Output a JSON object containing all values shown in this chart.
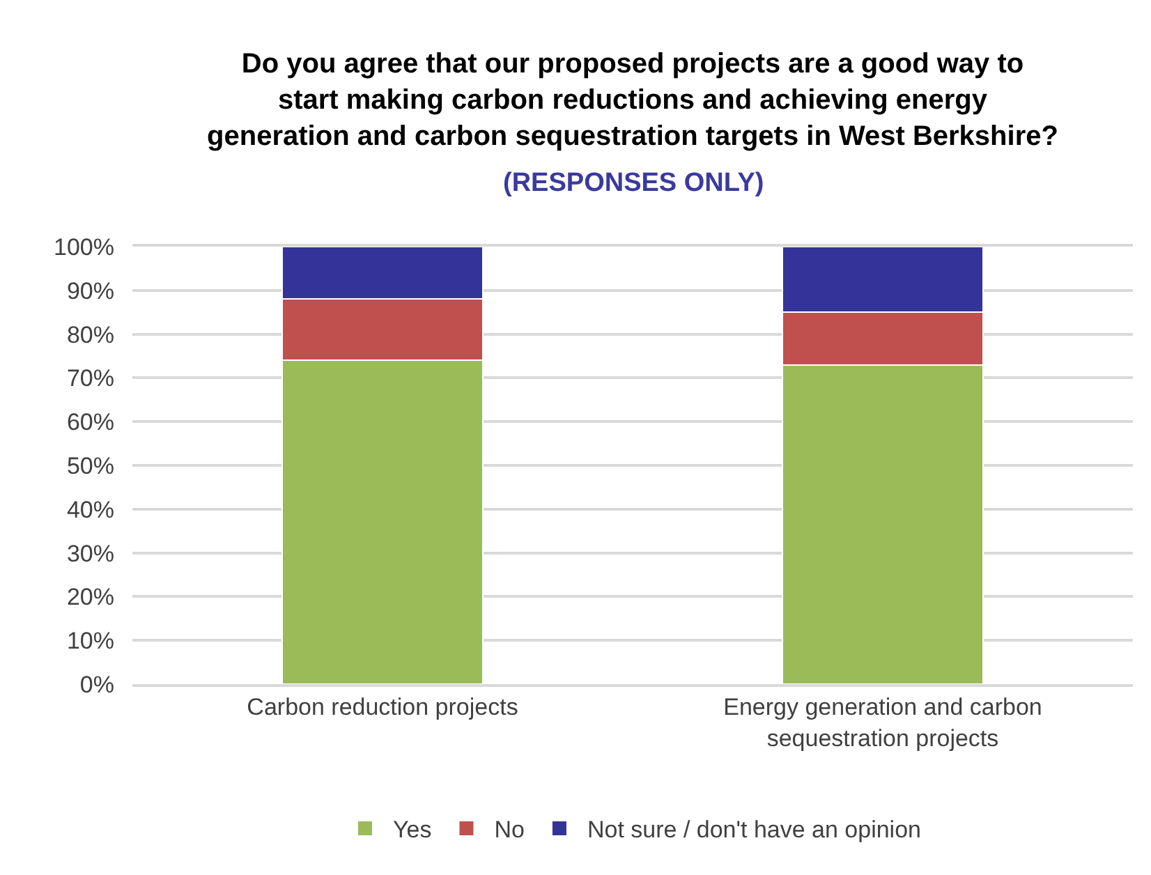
{
  "chart_data": {
    "type": "bar",
    "title": "Do you agree that our proposed projects are a good way to\nstart making carbon reductions and achieving energy\ngeneration and carbon sequestration targets in West Berkshire?",
    "subtitle": "(RESPONSES ONLY)",
    "categories": [
      "Carbon reduction projects",
      "Energy generation and carbon sequestration projects"
    ],
    "series": [
      {
        "name": "Yes",
        "color": "#9bbb59",
        "values": [
          74,
          73
        ]
      },
      {
        "name": "No",
        "color": "#c0504d",
        "values": [
          14,
          12
        ]
      },
      {
        "name": "Not sure / don't have an opinion",
        "color": "#343399",
        "values": [
          12,
          15
        ]
      }
    ],
    "stacked": true,
    "ylim": [
      0,
      100
    ],
    "yticks": [
      {
        "value": 0,
        "label": "0%"
      },
      {
        "value": 10,
        "label": "10%"
      },
      {
        "value": 20,
        "label": "20%"
      },
      {
        "value": 30,
        "label": "30%"
      },
      {
        "value": 40,
        "label": "40%"
      },
      {
        "value": 50,
        "label": "50%"
      },
      {
        "value": 60,
        "label": "60%"
      },
      {
        "value": 70,
        "label": "70%"
      },
      {
        "value": 80,
        "label": "80%"
      },
      {
        "value": 90,
        "label": "90%"
      },
      {
        "value": 100,
        "label": "100%"
      }
    ],
    "grid": "y",
    "legend": "bottom"
  }
}
